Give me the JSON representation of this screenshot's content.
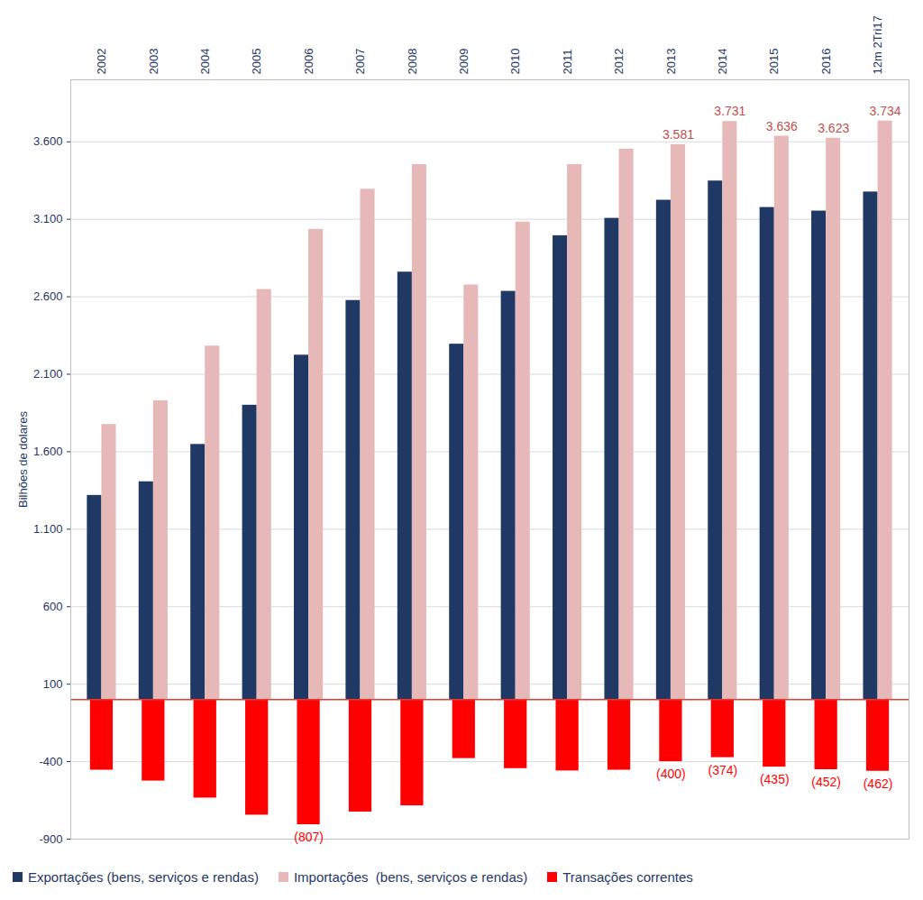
{
  "chart_data": {
    "type": "bar",
    "ylabel": "Bilhões de dolares",
    "categories": [
      "2002",
      "2003",
      "2004",
      "2005",
      "2006",
      "2007",
      "2008",
      "2009",
      "2010",
      "2011",
      "2012",
      "2013",
      "2014",
      "2015",
      "2016",
      "12m 2Tri17"
    ],
    "series": [
      {
        "name": "Exportações (bens, serviços e rendas)",
        "color": "#1f3864",
        "values": [
          1318,
          1406,
          1647,
          1900,
          2223,
          2576,
          2759,
          2294,
          2635,
          2994,
          3106,
          3223,
          3347,
          3176,
          3153,
          3276
        ]
      },
      {
        "name": "Importações  (bens, serviços e rendas)",
        "color": "#e6b9b8",
        "data_labels": true,
        "values": [
          1776,
          1929,
          2282,
          2647,
          3035,
          3294,
          3453,
          2676,
          3082,
          3453,
          3553,
          3581,
          3731,
          3636,
          3623,
          3734
        ],
        "value_labels": [
          null,
          null,
          null,
          null,
          null,
          null,
          null,
          null,
          null,
          null,
          null,
          "3.581",
          "3.731",
          "3.636",
          "3.623",
          "3.734"
        ]
      },
      {
        "name": "Transações correntes",
        "color": "#ff0000",
        "data_labels": true,
        "values": [
          -455,
          -525,
          -635,
          -745,
          -807,
          -725,
          -685,
          -380,
          -445,
          -460,
          -455,
          -400,
          -374,
          -435,
          -452,
          -462
        ],
        "value_labels": [
          null,
          null,
          null,
          null,
          "(807)",
          null,
          null,
          null,
          null,
          null,
          null,
          "(400)",
          "(374)",
          "(435)",
          "(452)",
          "(462)"
        ]
      }
    ],
    "ylim": [
      -900,
      4000
    ],
    "yticks": [
      -900,
      -400,
      100,
      600,
      {
        "value": 1100,
        "label": "1.100"
      },
      {
        "value": 1600,
        "label": "1.600"
      },
      {
        "value": 2100,
        "label": "2.100"
      },
      {
        "value": 2600,
        "label": "2.600"
      },
      {
        "value": 3100,
        "label": "3.100"
      },
      {
        "value": 3600,
        "label": "3.600"
      }
    ],
    "grid": true,
    "legend": "bottom"
  }
}
